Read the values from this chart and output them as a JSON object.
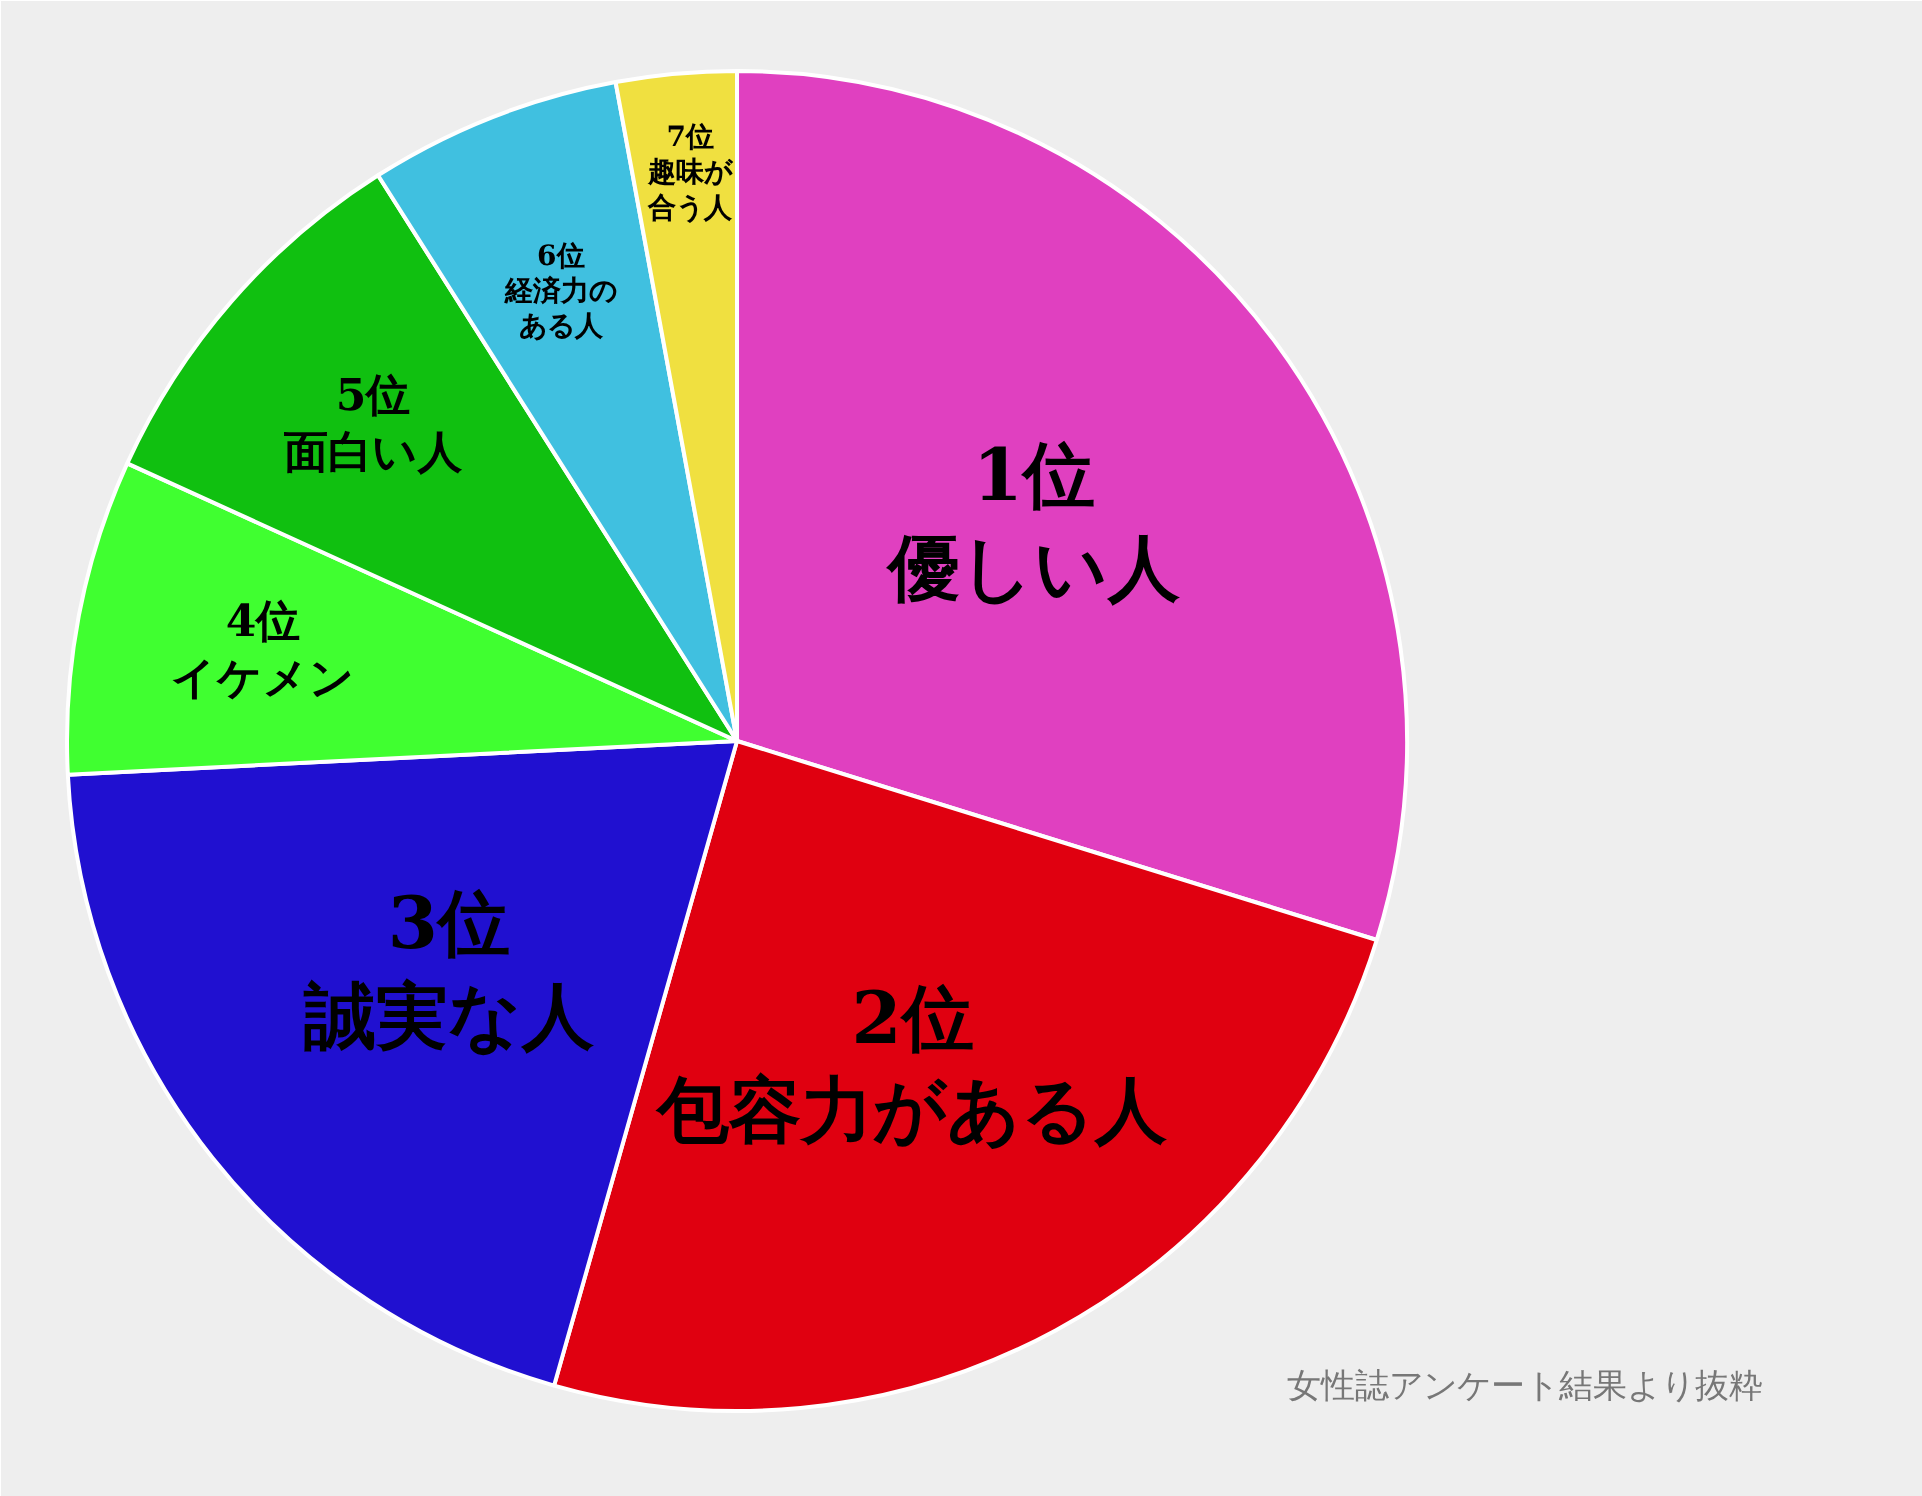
{
  "chart_data": {
    "type": "pie",
    "categories": [
      "1位優しい人",
      "2位包容力がある人",
      "3位誠実な人",
      "4位イケメン",
      "5位面白い人",
      "6位経済力のある人",
      "7位趣味が合う人"
    ],
    "values": [
      29.8,
      24.6,
      19.8,
      7.6,
      9.2,
      6.1,
      2.9
    ],
    "colors": [
      "#e040c0",
      "#e00010",
      "#2010d0",
      "#40ff30",
      "#10c010",
      "#40c0e0",
      "#f0e040"
    ],
    "annotations": [
      "女性誌アンケート結果より抜粋"
    ]
  }
}
